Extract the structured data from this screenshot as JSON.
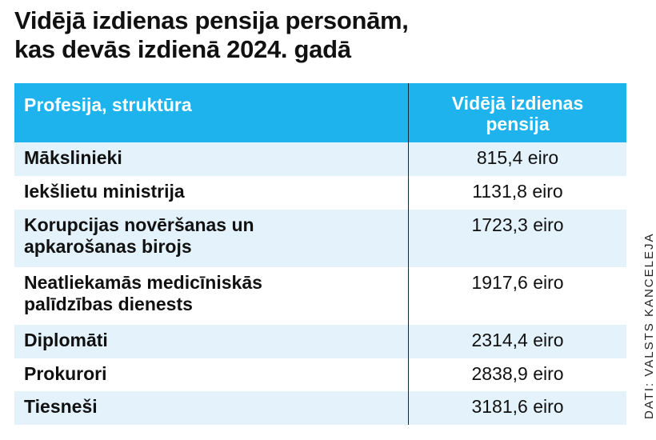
{
  "title_line1": "Vidējā izdienas pensija personām,",
  "title_line2": "kas devās izdienā 2024. gadā",
  "chart_data": {
    "type": "table",
    "columns": [
      "Profesija, struktūra",
      "Vidējā izdienas pensija"
    ],
    "unit": "eiro",
    "rows": [
      {
        "name": "Mākslinieki",
        "value": 815.4,
        "display": "815,4 eiro"
      },
      {
        "name": "Iekšlietu ministrija",
        "value": 1131.8,
        "display": "1131,8 eiro"
      },
      {
        "name": "Korupcijas novēršanas un apkarošanas birojs",
        "value": 1723.3,
        "display": "1723,3 eiro"
      },
      {
        "name": "Neatliekamās medicīniskās palīdzības dienests",
        "value": 1917.6,
        "display": "1917,6 eiro"
      },
      {
        "name": "Diplomāti",
        "value": 2314.4,
        "display": "2314,4 eiro"
      },
      {
        "name": "Prokurori",
        "value": 2838.9,
        "display": "2838,9 eiro"
      },
      {
        "name": "Tiesneši",
        "value": 3181.6,
        "display": "3181,6 eiro"
      }
    ]
  },
  "header": {
    "col1": "Profesija, struktūra",
    "col2_line1": "Vidējā izdienas",
    "col2_line2": "pensija"
  },
  "rows": [
    {
      "line1": "Mākslinieki",
      "line2": "",
      "value": "815,4 eiro"
    },
    {
      "line1": "Iekšlietu ministrija",
      "line2": "",
      "value": "1131,8 eiro"
    },
    {
      "line1": "Korupcijas novēršanas un",
      "line2": "apkarošanas birojs",
      "value": "1723,3 eiro"
    },
    {
      "line1": "Neatliekamās medicīniskās",
      "line2": "palīdzības dienests",
      "value": "1917,6 eiro"
    },
    {
      "line1": "Diplomāti",
      "line2": "",
      "value": "2314,4 eiro"
    },
    {
      "line1": "Prokurori",
      "line2": "",
      "value": "2838,9 eiro"
    },
    {
      "line1": "Tiesneši",
      "line2": "",
      "value": "3181,6 eiro"
    }
  ],
  "source": "DATI: VALSTS KANCELEJA",
  "colors": {
    "header_bg": "#1fb3ee",
    "alt_row_bg": "#e4f2fb",
    "header_text": "#ffffff"
  }
}
